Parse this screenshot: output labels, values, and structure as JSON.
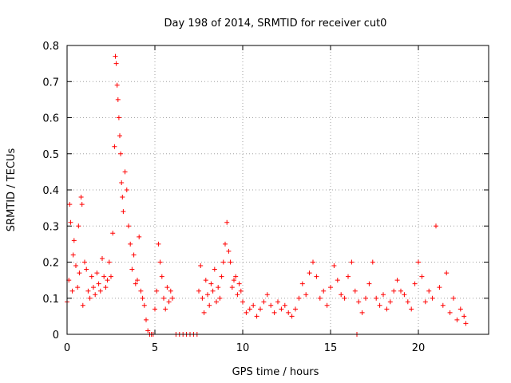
{
  "chart_data": {
    "type": "scatter",
    "title": "Day 198 of 2014, SRMTID for receiver cut0",
    "xlabel": "GPS time / hours",
    "ylabel": "SRMTID / TECUs",
    "xlim": [
      0,
      24
    ],
    "ylim": [
      0,
      0.8
    ],
    "xticks": [
      0,
      5,
      10,
      15,
      20
    ],
    "xtick_labels": [
      "0",
      "5",
      "10",
      "15",
      "20"
    ],
    "yticks": [
      0,
      0.1,
      0.2,
      0.3,
      0.4,
      0.5,
      0.6,
      0.7,
      0.8
    ],
    "ytick_labels": [
      "0",
      "0.1",
      "0.2",
      "0.3",
      "0.4",
      "0.5",
      "0.6",
      "0.7",
      "0.8"
    ],
    "grid": true,
    "marker": "+",
    "color": "#ff0000",
    "series": [
      {
        "name": "SRMTID",
        "points": [
          [
            0.0,
            0.09
          ],
          [
            0.1,
            0.15
          ],
          [
            0.15,
            0.36
          ],
          [
            0.2,
            0.31
          ],
          [
            0.3,
            0.12
          ],
          [
            0.35,
            0.22
          ],
          [
            0.4,
            0.26
          ],
          [
            0.5,
            0.19
          ],
          [
            0.6,
            0.13
          ],
          [
            0.65,
            0.3
          ],
          [
            0.7,
            0.17
          ],
          [
            0.8,
            0.38
          ],
          [
            0.85,
            0.36
          ],
          [
            0.9,
            0.08
          ],
          [
            1.0,
            0.2
          ],
          [
            1.1,
            0.18
          ],
          [
            1.2,
            0.12
          ],
          [
            1.3,
            0.1
          ],
          [
            1.4,
            0.16
          ],
          [
            1.5,
            0.13
          ],
          [
            1.6,
            0.11
          ],
          [
            1.7,
            0.17
          ],
          [
            1.8,
            0.14
          ],
          [
            1.9,
            0.12
          ],
          [
            2.0,
            0.21
          ],
          [
            2.1,
            0.16
          ],
          [
            2.2,
            0.13
          ],
          [
            2.3,
            0.15
          ],
          [
            2.4,
            0.2
          ],
          [
            2.5,
            0.16
          ],
          [
            2.6,
            0.28
          ],
          [
            2.7,
            0.52
          ],
          [
            2.75,
            0.77
          ],
          [
            2.8,
            0.75
          ],
          [
            2.85,
            0.69
          ],
          [
            2.9,
            0.65
          ],
          [
            2.95,
            0.6
          ],
          [
            3.0,
            0.55
          ],
          [
            3.05,
            0.5
          ],
          [
            3.1,
            0.42
          ],
          [
            3.15,
            0.38
          ],
          [
            3.2,
            0.34
          ],
          [
            3.3,
            0.45
          ],
          [
            3.4,
            0.4
          ],
          [
            3.5,
            0.3
          ],
          [
            3.6,
            0.25
          ],
          [
            3.7,
            0.18
          ],
          [
            3.8,
            0.22
          ],
          [
            3.9,
            0.14
          ],
          [
            4.0,
            0.15
          ],
          [
            4.1,
            0.27
          ],
          [
            4.2,
            0.12
          ],
          [
            4.3,
            0.1
          ],
          [
            4.4,
            0.08
          ],
          [
            4.5,
            0.04
          ],
          [
            4.6,
            0.01
          ],
          [
            4.7,
            0.0
          ],
          [
            4.8,
            0.0
          ],
          [
            4.9,
            0.0
          ],
          [
            5.0,
            0.07
          ],
          [
            5.1,
            0.12
          ],
          [
            5.2,
            0.25
          ],
          [
            5.3,
            0.2
          ],
          [
            5.4,
            0.16
          ],
          [
            5.5,
            0.1
          ],
          [
            5.6,
            0.07
          ],
          [
            5.7,
            0.13
          ],
          [
            5.8,
            0.09
          ],
          [
            5.9,
            0.12
          ],
          [
            6.0,
            0.1
          ],
          [
            6.2,
            0.0
          ],
          [
            6.4,
            0.0
          ],
          [
            6.6,
            0.0
          ],
          [
            6.8,
            0.0
          ],
          [
            7.0,
            0.0
          ],
          [
            7.2,
            0.0
          ],
          [
            7.4,
            0.0
          ],
          [
            7.5,
            0.12
          ],
          [
            7.6,
            0.19
          ],
          [
            7.7,
            0.1
          ],
          [
            7.8,
            0.06
          ],
          [
            7.9,
            0.15
          ],
          [
            8.0,
            0.11
          ],
          [
            8.1,
            0.08
          ],
          [
            8.2,
            0.14
          ],
          [
            8.3,
            0.12
          ],
          [
            8.4,
            0.18
          ],
          [
            8.5,
            0.09
          ],
          [
            8.6,
            0.13
          ],
          [
            8.7,
            0.1
          ],
          [
            8.8,
            0.16
          ],
          [
            8.9,
            0.2
          ],
          [
            9.0,
            0.25
          ],
          [
            9.1,
            0.31
          ],
          [
            9.2,
            0.23
          ],
          [
            9.3,
            0.2
          ],
          [
            9.4,
            0.13
          ],
          [
            9.5,
            0.15
          ],
          [
            9.6,
            0.16
          ],
          [
            9.7,
            0.11
          ],
          [
            9.8,
            0.14
          ],
          [
            9.9,
            0.12
          ],
          [
            10.0,
            0.09
          ],
          [
            10.2,
            0.06
          ],
          [
            10.4,
            0.07
          ],
          [
            10.6,
            0.08
          ],
          [
            10.8,
            0.05
          ],
          [
            11.0,
            0.07
          ],
          [
            11.2,
            0.09
          ],
          [
            11.4,
            0.11
          ],
          [
            11.6,
            0.08
          ],
          [
            11.8,
            0.06
          ],
          [
            12.0,
            0.09
          ],
          [
            12.2,
            0.07
          ],
          [
            12.4,
            0.08
          ],
          [
            12.6,
            0.06
          ],
          [
            12.8,
            0.05
          ],
          [
            13.0,
            0.07
          ],
          [
            13.2,
            0.1
          ],
          [
            13.4,
            0.14
          ],
          [
            13.6,
            0.11
          ],
          [
            13.8,
            0.17
          ],
          [
            14.0,
            0.2
          ],
          [
            14.2,
            0.16
          ],
          [
            14.4,
            0.1
          ],
          [
            14.6,
            0.12
          ],
          [
            14.8,
            0.08
          ],
          [
            15.0,
            0.13
          ],
          [
            15.2,
            0.19
          ],
          [
            15.4,
            0.15
          ],
          [
            15.6,
            0.11
          ],
          [
            15.8,
            0.1
          ],
          [
            16.0,
            0.16
          ],
          [
            16.2,
            0.2
          ],
          [
            16.4,
            0.12
          ],
          [
            16.5,
            0.0
          ],
          [
            16.6,
            0.09
          ],
          [
            16.8,
            0.06
          ],
          [
            17.0,
            0.1
          ],
          [
            17.2,
            0.14
          ],
          [
            17.4,
            0.2
          ],
          [
            17.6,
            0.1
          ],
          [
            17.8,
            0.08
          ],
          [
            18.0,
            0.11
          ],
          [
            18.2,
            0.07
          ],
          [
            18.4,
            0.09
          ],
          [
            18.6,
            0.12
          ],
          [
            18.8,
            0.15
          ],
          [
            19.0,
            0.12
          ],
          [
            19.2,
            0.11
          ],
          [
            19.4,
            0.09
          ],
          [
            19.6,
            0.07
          ],
          [
            19.8,
            0.14
          ],
          [
            20.0,
            0.2
          ],
          [
            20.2,
            0.16
          ],
          [
            20.4,
            0.09
          ],
          [
            20.6,
            0.12
          ],
          [
            20.8,
            0.1
          ],
          [
            21.0,
            0.3
          ],
          [
            21.2,
            0.13
          ],
          [
            21.4,
            0.08
          ],
          [
            21.6,
            0.17
          ],
          [
            21.8,
            0.06
          ],
          [
            22.0,
            0.1
          ],
          [
            22.2,
            0.04
          ],
          [
            22.4,
            0.07
          ],
          [
            22.6,
            0.05
          ],
          [
            22.7,
            0.03
          ]
        ]
      }
    ]
  }
}
